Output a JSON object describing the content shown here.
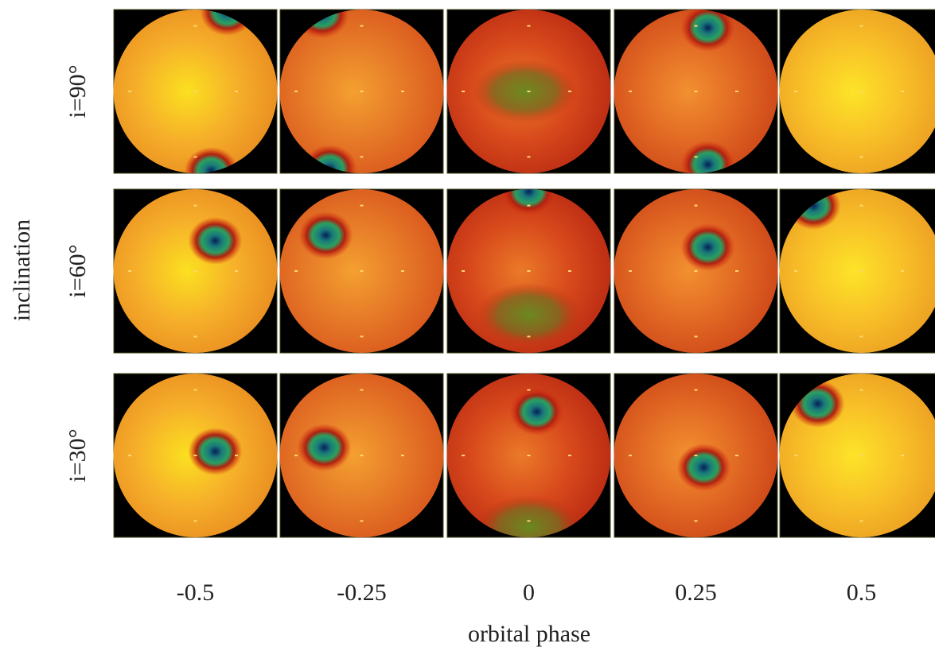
{
  "axis_y": {
    "label": "inclination",
    "rows": [
      "i=90°",
      "i=60°",
      "i=30°"
    ]
  },
  "axis_x": {
    "label": "orbital phase",
    "columns": [
      "-0.5",
      "-0.25",
      "0",
      "0.25",
      "0.5"
    ]
  }
}
